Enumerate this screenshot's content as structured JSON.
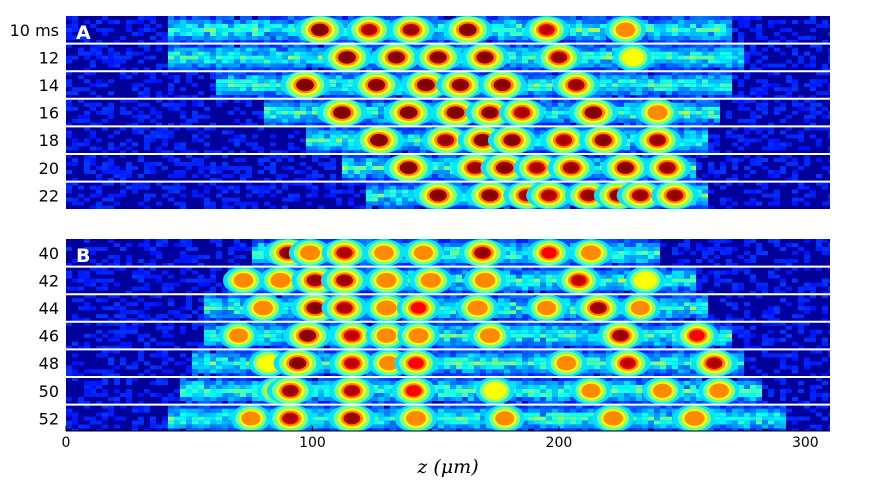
{
  "chart_data": {
    "type": "heatmap",
    "title": "",
    "xlabel": "z (μm)",
    "xlim": [
      0,
      310
    ],
    "xticks": [
      0,
      100,
      200,
      300
    ],
    "colormap": "jet",
    "panels": [
      {
        "label": "A",
        "rows": [
          {
            "label": "10 ms",
            "blobs": [
              [
                103,
                0.9
              ],
              [
                123,
                0.75
              ],
              [
                140,
                0.8
              ],
              [
                163,
                0.9
              ],
              [
                195,
                0.7
              ],
              [
                227,
                0.55
              ]
            ],
            "halo": [
              40,
              270
            ]
          },
          {
            "label": "12",
            "blobs": [
              [
                114,
                0.9
              ],
              [
                134,
                0.85
              ],
              [
                151,
                0.85
              ],
              [
                170,
                0.85
              ],
              [
                200,
                0.8
              ],
              [
                230,
                0.4
              ]
            ],
            "halo": [
              40,
              275
            ]
          },
          {
            "label": "14",
            "blobs": [
              [
                97,
                0.9
              ],
              [
                126,
                0.85
              ],
              [
                146,
                0.9
              ],
              [
                160,
                0.85
              ],
              [
                177,
                0.85
              ],
              [
                207,
                0.8
              ]
            ],
            "halo": [
              60,
              270
            ]
          },
          {
            "label": "16",
            "blobs": [
              [
                112,
                0.9
              ],
              [
                139,
                0.9
              ],
              [
                158,
                0.9
              ],
              [
                172,
                0.85
              ],
              [
                185,
                0.75
              ],
              [
                214,
                0.9
              ],
              [
                240,
                0.6
              ]
            ],
            "halo": [
              80,
              265
            ]
          },
          {
            "label": "18",
            "blobs": [
              [
                127,
                0.9
              ],
              [
                154,
                0.8
              ],
              [
                169,
                0.9
              ],
              [
                181,
                0.85
              ],
              [
                202,
                0.75
              ],
              [
                218,
                0.85
              ],
              [
                240,
                0.8
              ]
            ],
            "halo": [
              95,
              260
            ]
          },
          {
            "label": "20",
            "blobs": [
              [
                139,
                0.9
              ],
              [
                166,
                0.8
              ],
              [
                178,
                0.85
              ],
              [
                191,
                0.75
              ],
              [
                205,
                0.8
              ],
              [
                227,
                0.85
              ],
              [
                244,
                0.8
              ]
            ],
            "halo": [
              110,
              255
            ]
          },
          {
            "label": "22",
            "blobs": [
              [
                151,
                0.85
              ],
              [
                172,
                0.85
              ],
              [
                187,
                0.8
              ],
              [
                196,
                0.75
              ],
              [
                212,
                0.8
              ],
              [
                224,
                0.85
              ],
              [
                233,
                0.8
              ],
              [
                247,
                0.8
              ]
            ],
            "halo": [
              120,
              260
            ]
          }
        ]
      },
      {
        "label": "B",
        "rows": [
          {
            "label": "40",
            "blobs": [
              [
                90,
                0.85
              ],
              [
                99,
                0.6
              ],
              [
                113,
                0.75
              ],
              [
                129,
                0.55
              ],
              [
                145,
                0.5
              ],
              [
                169,
                0.8
              ],
              [
                196,
                0.65
              ],
              [
                213,
                0.6
              ]
            ],
            "halo": [
              75,
              240
            ]
          },
          {
            "label": "42",
            "blobs": [
              [
                72,
                0.55
              ],
              [
                87,
                0.6
              ],
              [
                101,
                0.8
              ],
              [
                113,
                0.8
              ],
              [
                130,
                0.6
              ],
              [
                148,
                0.6
              ],
              [
                170,
                0.6
              ],
              [
                208,
                0.7
              ],
              [
                235,
                0.45
              ]
            ],
            "halo": [
              65,
              255
            ]
          },
          {
            "label": "44",
            "blobs": [
              [
                80,
                0.55
              ],
              [
                101,
                0.85
              ],
              [
                113,
                0.75
              ],
              [
                130,
                0.6
              ],
              [
                143,
                0.65
              ],
              [
                167,
                0.6
              ],
              [
                195,
                0.5
              ],
              [
                216,
                0.8
              ],
              [
                233,
                0.5
              ]
            ],
            "halo": [
              55,
              260
            ]
          },
          {
            "label": "46",
            "blobs": [
              [
                70,
                0.5
              ],
              [
                98,
                0.85
              ],
              [
                116,
                0.7
              ],
              [
                130,
                0.55
              ],
              [
                143,
                0.6
              ],
              [
                172,
                0.6
              ],
              [
                225,
                0.8
              ],
              [
                256,
                0.65
              ]
            ],
            "halo": [
              55,
              270
            ]
          },
          {
            "label": "48",
            "blobs": [
              [
                82,
                0.45
              ],
              [
                94,
                0.85
              ],
              [
                116,
                0.7
              ],
              [
                131,
                0.55
              ],
              [
                142,
                0.65
              ],
              [
                203,
                0.55
              ],
              [
                228,
                0.7
              ],
              [
                263,
                0.75
              ]
            ],
            "halo": [
              50,
              275
            ]
          },
          {
            "label": "50",
            "blobs": [
              [
                86,
                0.6
              ],
              [
                91,
                0.8
              ],
              [
                116,
                0.75
              ],
              [
                141,
                0.65
              ],
              [
                174,
                0.45
              ],
              [
                213,
                0.5
              ],
              [
                242,
                0.5
              ],
              [
                265,
                0.55
              ]
            ],
            "halo": [
              45,
              280
            ]
          },
          {
            "label": "52",
            "blobs": [
              [
                75,
                0.5
              ],
              [
                91,
                0.75
              ],
              [
                116,
                0.8
              ],
              [
                142,
                0.6
              ],
              [
                178,
                0.5
              ],
              [
                222,
                0.55
              ],
              [
                255,
                0.6
              ]
            ],
            "halo": [
              40,
              290
            ]
          }
        ]
      }
    ]
  }
}
